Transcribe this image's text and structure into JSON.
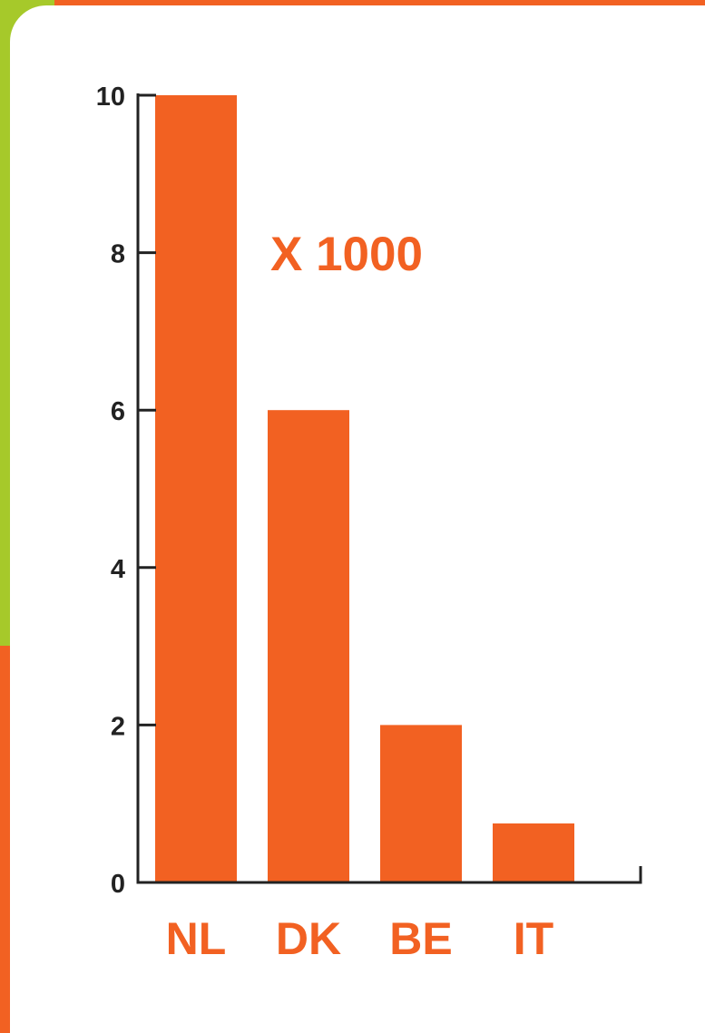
{
  "colors": {
    "bar": "#f26122",
    "label": "#f26122",
    "axis": "#222222",
    "panel": "#ffffff",
    "frame_orange": "#f26122",
    "frame_green": "#a6c92a"
  },
  "chart_data": {
    "type": "bar",
    "categories": [
      "NL",
      "DK",
      "BE",
      "IT"
    ],
    "values": [
      10,
      6,
      2,
      0.75
    ],
    "title": "",
    "xlabel": "",
    "ylabel": "",
    "ylim": [
      0,
      10
    ],
    "yticks": [
      "0",
      "2",
      "4",
      "6",
      "8",
      "10"
    ],
    "grid": false,
    "annotation": "X 1000"
  }
}
